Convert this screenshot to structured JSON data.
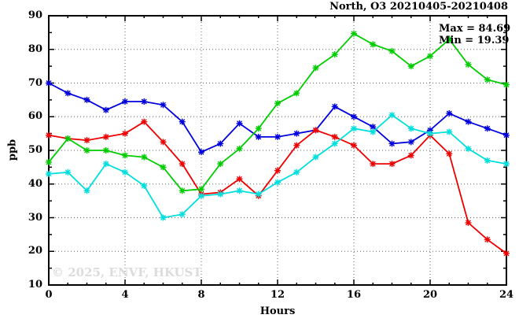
{
  "title": "North, O3 20210405-20210408",
  "annotation": {
    "max_label": "Max = 84.69",
    "min_label": "Min = 19.39"
  },
  "watermark": "© 2025, ENVF, HKUST",
  "chart_data": {
    "type": "line",
    "title": "North, O3 20210405-20210408",
    "xlabel": "Hours",
    "ylabel": "ppb",
    "xlim": [
      0,
      24
    ],
    "ylim": [
      10,
      90
    ],
    "x_major_ticks": [
      0,
      4,
      8,
      12,
      16,
      20,
      24
    ],
    "y_major_ticks": [
      10,
      20,
      30,
      40,
      50,
      60,
      70,
      80,
      90
    ],
    "grid": true,
    "legend": false,
    "max_value": 84.69,
    "min_value": 19.39,
    "x": [
      0,
      1,
      2,
      3,
      4,
      5,
      6,
      7,
      8,
      9,
      10,
      11,
      12,
      13,
      14,
      15,
      16,
      17,
      18,
      19,
      20,
      21,
      22,
      23,
      24
    ],
    "series": [
      {
        "name": "blue-series",
        "color": "#0000dd",
        "values": [
          70,
          67,
          65,
          62,
          64.5,
          64.5,
          63.5,
          58.5,
          49.5,
          52,
          58,
          54,
          54,
          55,
          56,
          63,
          60,
          57,
          52,
          52.5,
          56,
          61,
          58.5,
          56.5,
          54.5
        ]
      },
      {
        "name": "red-series",
        "color": "#ee0000",
        "values": [
          54.5,
          53.5,
          53,
          54,
          55,
          58.5,
          52.5,
          46,
          37,
          37.5,
          41.5,
          36.5,
          44,
          51.5,
          56,
          54,
          51.5,
          46,
          46,
          48.5,
          54.5,
          49,
          28.5,
          23.5,
          19.39
        ]
      },
      {
        "name": "green-series",
        "color": "#00cc00",
        "values": [
          46.5,
          53.5,
          50,
          50,
          48.5,
          48,
          45,
          38,
          38.5,
          46,
          50.5,
          56.5,
          64,
          67,
          74.5,
          78.5,
          84.69,
          81.5,
          79.5,
          75,
          78,
          83,
          75.5,
          71,
          69.5
        ]
      },
      {
        "name": "cyan-series",
        "color": "#00dede",
        "values": [
          43,
          43.5,
          38,
          46,
          43.5,
          39.5,
          30,
          31,
          36.5,
          37,
          38,
          37,
          40.5,
          43.5,
          48,
          52,
          56.5,
          55.5,
          60.5,
          56.5,
          55,
          55.5,
          50.5,
          47,
          46
        ]
      }
    ],
    "plot_colors": {
      "frame": "#000000",
      "grid": "#666666",
      "background": "#ffffff",
      "watermark": "#dcdcdc"
    }
  }
}
